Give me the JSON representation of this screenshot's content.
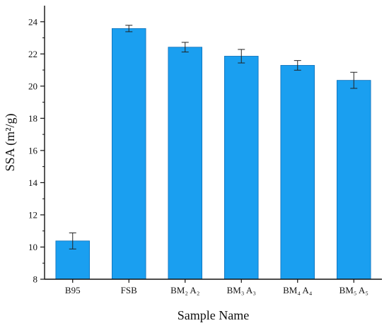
{
  "chart_data": {
    "type": "bar",
    "title": "",
    "xlabel": "Sample Name",
    "ylabel": "SSA (m²/g)",
    "ylim": [
      8,
      25
    ],
    "yticks": [
      8,
      10,
      12,
      14,
      16,
      18,
      20,
      22,
      24
    ],
    "grid": false,
    "categories": [
      "B95",
      "FSB",
      "BM₂ A₂",
      "BM₃ A₃",
      "BM₄ A₄",
      "BM₅ A₅"
    ],
    "series": [
      {
        "values": [
          10.38,
          23.58,
          22.42,
          21.86,
          21.29,
          20.36
        ],
        "errors": [
          0.5,
          0.2,
          0.3,
          0.42,
          0.3,
          0.5
        ]
      }
    ],
    "bar_color": "#1a9ff0"
  }
}
